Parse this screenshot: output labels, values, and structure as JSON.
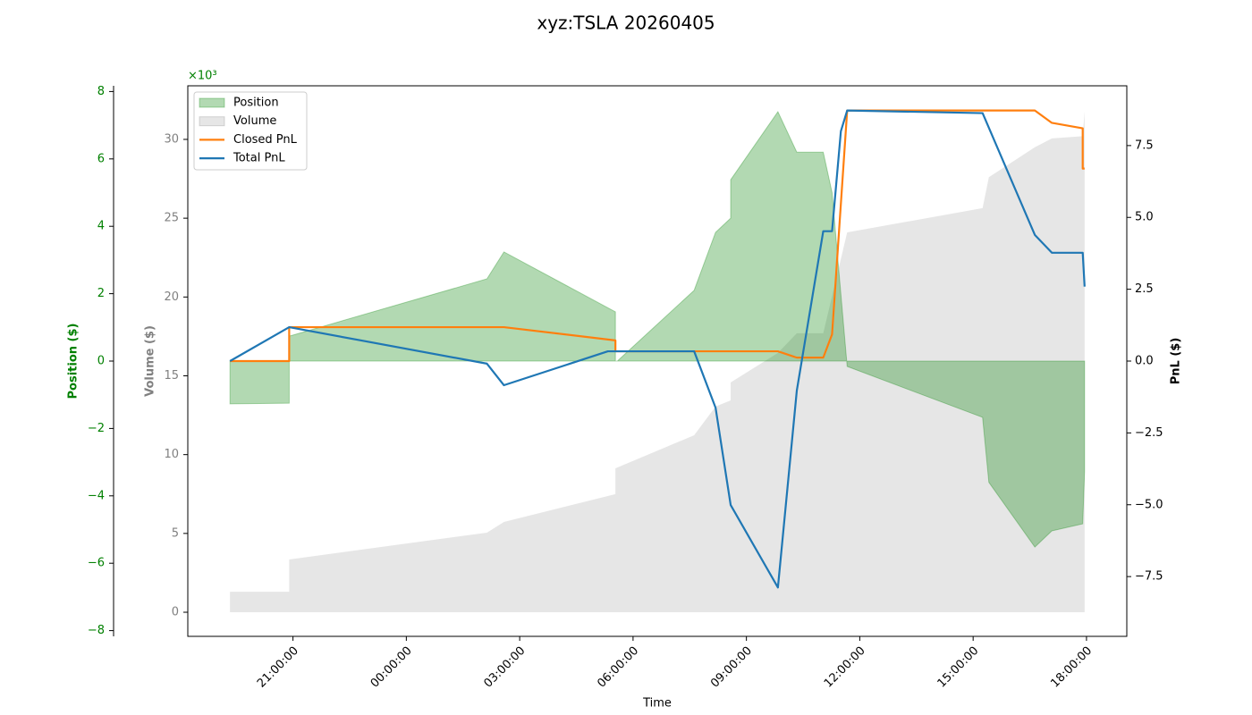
{
  "chart_data": {
    "type": "line",
    "title": "xyz:TSLA 20260405",
    "xlabel": "Time",
    "ylabel": "Position ($)",
    "y2label": "PnL ($)",
    "y3label": "Volume ($)",
    "y3_offset": "×10³",
    "xlim": [
      "18:13:00",
      "19:04:00"
    ],
    "xticks": [
      "21:00:00",
      "00:00:00",
      "03:00:00",
      "06:00:00",
      "09:00:00",
      "12:00:00",
      "15:00:00",
      "18:00:00"
    ],
    "ylim": [
      -8.17,
      8.17
    ],
    "yticks": [
      {
        "value": -8,
        "label": "−8"
      },
      {
        "value": -6,
        "label": "−6"
      },
      {
        "value": -4,
        "label": "−4"
      },
      {
        "value": -2,
        "label": "−2"
      },
      0,
      2,
      4,
      6,
      8
    ],
    "y3lim": [
      -1.53,
      33.4
    ],
    "y3ticks": [
      0,
      5,
      10,
      15,
      20,
      25,
      30
    ],
    "y2lim": [
      -9.58,
      9.58
    ],
    "y2ticks": [
      {
        "value": -7.5,
        "label": "−7.5"
      },
      {
        "value": -5,
        "label": "−5.0"
      },
      {
        "value": -2.5,
        "label": "−2.5"
      },
      {
        "value": 0,
        "label": "0.0"
      },
      2.5,
      {
        "value": 5,
        "label": "5.0"
      },
      7.5
    ],
    "legend": "upper left",
    "series": [
      {
        "name": "Volume",
        "color": "#808080",
        "fill": true,
        "axis": "y3",
        "x": [
          "19:20",
          "20:54",
          "20:54",
          "02:08",
          "02:35",
          "05:32",
          "05:32",
          "07:37",
          "08:11",
          "08:35",
          "08:35",
          "09:50",
          "10:20",
          "11:02",
          "11:40",
          "15:15",
          "15:25",
          "16:38",
          "17:05",
          "17:54",
          "17:57"
        ],
        "values": [
          1.3,
          1.3,
          3.35,
          5.05,
          5.73,
          7.49,
          9.13,
          11.23,
          13.05,
          13.44,
          14.58,
          16.45,
          17.7,
          17.7,
          24.1,
          25.64,
          27.6,
          29.5,
          30.06,
          30.2,
          31.8
        ]
      },
      {
        "name": "Position",
        "color": "#008000",
        "fill": true,
        "axis": "y",
        "x": [
          "19:20",
          "20:54",
          "20:54",
          "02:08",
          "02:35",
          "05:32",
          "05:32",
          "05:35",
          "07:37",
          "08:11",
          "08:35",
          "08:35",
          "09:50",
          "10:20",
          "11:02",
          "11:16",
          "11:40",
          "15:15",
          "15:25",
          "16:38",
          "17:05",
          "17:54",
          "17:57"
        ],
        "values": [
          -1.27,
          -1.25,
          0.74,
          2.44,
          3.24,
          1.46,
          0,
          0,
          2.1,
          3.82,
          4.24,
          5.38,
          7.4,
          6.2,
          6.2,
          5.0,
          -0.16,
          -1.67,
          -3.6,
          -5.52,
          -5.04,
          -4.83,
          -3.26
        ]
      },
      {
        "name": "Closed PnL",
        "color": "#ff7f0e",
        "axis": "y2",
        "x": [
          "19:20",
          "20:54",
          "20:54",
          "02:35",
          "05:32",
          "05:32",
          "07:37",
          "09:22",
          "09:50",
          "10:20",
          "11:02",
          "11:16",
          "11:40",
          "16:38",
          "17:05",
          "17:54",
          "17:54",
          "17:57"
        ],
        "values": [
          0.0,
          0.0,
          1.18,
          1.18,
          0.72,
          0.34,
          0.34,
          0.34,
          0.34,
          0.12,
          0.12,
          0.93,
          8.72,
          8.72,
          8.29,
          8.1,
          6.7,
          6.7
        ]
      },
      {
        "name": "Total PnL",
        "color": "#1f77b4",
        "axis": "y2",
        "x": [
          "19:20",
          "20:54",
          "02:08",
          "02:35",
          "05:20",
          "07:37",
          "08:11",
          "08:35",
          "09:50",
          "10:20",
          "11:02",
          "11:16",
          "11:30",
          "11:40",
          "15:15",
          "16:38",
          "17:05",
          "17:54",
          "17:57"
        ],
        "values": [
          0.0,
          1.18,
          -0.09,
          -0.84,
          0.34,
          0.34,
          -1.62,
          -5.01,
          -7.88,
          -1.03,
          4.52,
          4.52,
          8.0,
          8.72,
          8.63,
          4.39,
          3.77,
          3.77,
          2.59
        ]
      }
    ]
  }
}
